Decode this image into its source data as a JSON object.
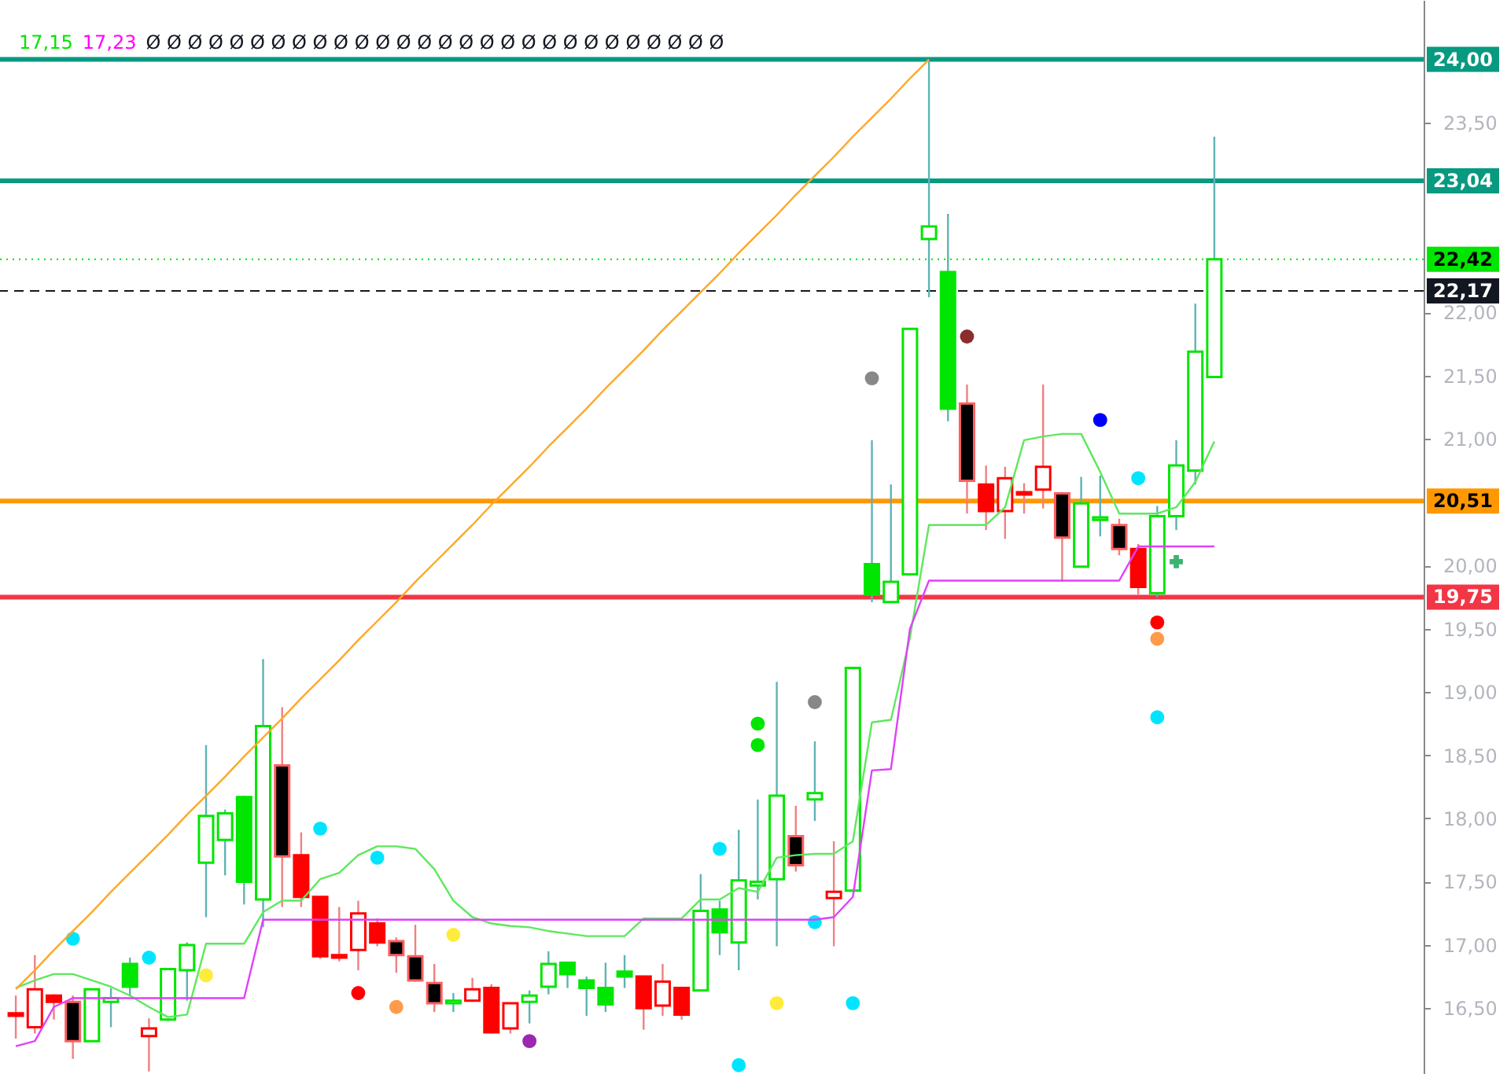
{
  "chart_data": {
    "type": "candlestick",
    "categories": [
      null,
      null,
      null,
      null,
      null,
      null,
      null,
      null,
      null,
      null,
      null,
      null,
      null,
      null,
      null,
      null,
      null,
      null,
      null,
      null,
      null,
      null,
      null,
      null,
      null,
      null,
      null,
      null,
      null,
      null,
      null,
      null,
      null,
      null,
      null,
      null,
      null,
      null,
      null,
      null,
      null,
      null,
      null,
      null,
      null,
      null,
      null,
      null,
      null,
      null,
      null,
      null,
      null,
      null,
      null,
      null,
      null,
      null,
      null,
      null,
      null,
      null,
      null,
      null
    ],
    "ylim": [
      15.98,
      24.47
    ],
    "yticks": [
      {
        "value": 16.5,
        "label": "16,50"
      },
      {
        "value": 17,
        "label": "17,00"
      },
      {
        "value": 17.5,
        "label": "17,50"
      },
      {
        "value": 18,
        "label": "18,00"
      },
      {
        "value": 18.5,
        "label": "18,50"
      },
      {
        "value": 19,
        "label": "19,00"
      },
      {
        "value": 19.5,
        "label": "19,50"
      },
      {
        "value": 20,
        "label": "20,00"
      },
      {
        "value": 21,
        "label": "21,00"
      },
      {
        "value": 21.5,
        "label": "21,50"
      },
      {
        "value": 22,
        "label": "22,00"
      },
      {
        "value": 23.5,
        "label": "23,50"
      }
    ],
    "tick_labels": "y",
    "ohlc": [
      [
        16.46,
        16.6,
        16.26,
        16.44
      ],
      [
        16.65,
        16.92,
        16.3,
        16.35
      ],
      [
        16.6,
        16.61,
        16.41,
        16.55
      ],
      [
        16.55,
        16.6,
        16.1,
        16.24
      ],
      [
        16.24,
        16.65,
        16.24,
        16.65
      ],
      [
        16.55,
        16.66,
        16.35,
        16.58
      ],
      [
        16.67,
        16.9,
        16.6,
        16.85
      ],
      [
        16.34,
        16.42,
        16.0,
        16.28
      ],
      [
        16.41,
        16.81,
        16.4,
        16.81
      ],
      [
        16.8,
        17.02,
        16.56,
        17.0
      ],
      [
        17.65,
        18.58,
        17.22,
        18.02
      ],
      [
        17.83,
        18.07,
        17.55,
        18.04
      ],
      [
        17.5,
        18.18,
        17.32,
        18.17
      ],
      [
        17.36,
        19.26,
        17.14,
        18.73
      ],
      [
        18.42,
        18.88,
        17.3,
        17.7
      ],
      [
        17.71,
        17.89,
        17.3,
        17.38
      ],
      [
        17.38,
        17.38,
        16.89,
        16.91
      ],
      [
        16.92,
        17.3,
        16.87,
        16.9
      ],
      [
        17.25,
        17.35,
        16.8,
        16.96
      ],
      [
        17.17,
        17.21,
        16.99,
        17.02
      ],
      [
        17.03,
        17.06,
        16.78,
        16.92
      ],
      [
        16.91,
        17.16,
        16.71,
        16.72
      ],
      [
        16.7,
        16.85,
        16.47,
        16.54
      ],
      [
        16.54,
        16.62,
        16.47,
        16.56
      ],
      [
        16.65,
        16.74,
        16.55,
        16.56
      ],
      [
        16.66,
        16.69,
        16.3,
        16.31
      ],
      [
        16.54,
        16.54,
        16.3,
        16.34
      ],
      [
        16.55,
        16.64,
        16.38,
        16.6
      ],
      [
        16.67,
        16.95,
        16.61,
        16.85
      ],
      [
        16.77,
        16.86,
        16.66,
        16.86
      ],
      [
        16.66,
        16.75,
        16.44,
        16.72
      ],
      [
        16.53,
        16.86,
        16.47,
        16.66
      ],
      [
        16.75,
        16.92,
        16.66,
        16.79
      ],
      [
        16.75,
        16.75,
        16.33,
        16.5
      ],
      [
        16.71,
        16.85,
        16.44,
        16.52
      ],
      [
        16.66,
        16.67,
        16.41,
        16.45
      ],
      [
        16.64,
        17.56,
        16.64,
        17.27
      ],
      [
        17.1,
        17.35,
        16.92,
        17.28
      ],
      [
        17.02,
        17.91,
        16.8,
        17.51
      ],
      [
        17.47,
        18.15,
        17.36,
        17.5
      ],
      [
        17.52,
        19.08,
        16.99,
        18.18
      ],
      [
        17.86,
        18.1,
        17.58,
        17.63
      ],
      [
        18.15,
        18.61,
        17.98,
        18.2
      ],
      [
        17.42,
        17.82,
        16.99,
        17.37
      ],
      [
        17.43,
        19.19,
        17.43,
        19.19
      ],
      [
        19.77,
        20.99,
        19.71,
        20.01
      ],
      [
        19.71,
        20.64,
        19.71,
        19.87
      ],
      [
        19.93,
        21.87,
        19.93,
        21.87
      ],
      [
        22.58,
        23.99,
        22.12,
        22.68
      ],
      [
        21.24,
        22.78,
        21.14,
        22.32
      ],
      [
        21.28,
        21.43,
        20.41,
        20.67
      ],
      [
        20.64,
        20.79,
        20.28,
        20.43
      ],
      [
        20.69,
        20.78,
        20.21,
        20.43
      ],
      [
        20.58,
        20.65,
        20.41,
        20.56
      ],
      [
        20.78,
        21.43,
        20.45,
        20.6
      ],
      [
        20.57,
        20.58,
        19.87,
        20.22
      ],
      [
        19.99,
        20.7,
        19.99,
        20.49
      ],
      [
        20.36,
        20.71,
        20.23,
        20.38
      ],
      [
        20.32,
        20.37,
        20.08,
        20.13
      ],
      [
        20.13,
        20.17,
        19.77,
        19.83
      ],
      [
        19.78,
        20.47,
        19.75,
        20.39
      ],
      [
        20.39,
        20.99,
        20.28,
        20.79
      ],
      [
        20.75,
        22.07,
        20.64,
        21.69
      ],
      [
        21.49,
        23.39,
        21.49,
        22.42
      ]
    ],
    "colors": [
      "#ff0000",
      "#ffffff",
      "#ff0000",
      "#000000",
      "#ffffff",
      "#ffffff",
      "#00e600",
      "#ffffff",
      "#ffffff",
      "#ffffff",
      "#ffffff",
      "#ffffff",
      "#00e600",
      "#ffffff",
      "#000000",
      "#ff0000",
      "#ff0000",
      "#ff0000",
      "#ffffff",
      "#ff0000",
      "#000000",
      "#000000",
      "#000000",
      "#ffffff",
      "#ffffff",
      "#ff0000",
      "#ffffff",
      "#ffffff",
      "#ffffff",
      "#00e600",
      "#00e600",
      "#00e600",
      "#00e600",
      "#ff0000",
      "#ffffff",
      "#ff0000",
      "#ffffff",
      "#00e600",
      "#ffffff",
      "#ffffff",
      "#ffffff",
      "#000000",
      "#ffffff",
      "#ffffff",
      "#ffffff",
      "#00e600",
      "#ffffff",
      "#ffffff",
      "#ffffff",
      "#00e600",
      "#000000",
      "#ff0000",
      "#ffffff",
      "#ff0000",
      "#ffffff",
      "#000000",
      "#ffffff",
      "#ffffff",
      "#000000",
      "#ff0000",
      "#ffffff",
      "#ffffff",
      "#ffffff",
      "#ffffff"
    ],
    "series": [
      {
        "type": "line",
        "color": "#5ee85e",
        "values": [
          16.66,
          16.72,
          16.77,
          16.77,
          16.72,
          16.67,
          16.6,
          16.51,
          16.43,
          16.45,
          17.01,
          17.01,
          17.01,
          17.26,
          17.35,
          17.35,
          17.52,
          17.57,
          17.71,
          17.78,
          17.78,
          17.76,
          17.6,
          17.35,
          17.22,
          17.17,
          17.15,
          17.14,
          17.11,
          17.09,
          17.07,
          17.07,
          17.07,
          17.21,
          17.21,
          17.21,
          17.36,
          17.36,
          17.45,
          17.42,
          17.69,
          17.71,
          17.72,
          17.72,
          17.82,
          18.76,
          18.78,
          19.43,
          20.32,
          20.32,
          20.32,
          20.32,
          20.46,
          20.99,
          21.02,
          21.04,
          21.04,
          20.74,
          20.41,
          20.41,
          20.41,
          20.46,
          20.66,
          20.98
        ]
      },
      {
        "type": "line",
        "color": "#e040fb",
        "values": [
          16.2,
          16.24,
          16.51,
          16.58,
          16.58,
          16.58,
          16.58,
          16.58,
          16.58,
          16.58,
          16.58,
          16.58,
          16.58,
          17.2,
          17.2,
          17.2,
          17.2,
          17.2,
          17.2,
          17.2,
          17.2,
          17.2,
          17.2,
          17.2,
          17.2,
          17.2,
          17.2,
          17.2,
          17.2,
          17.2,
          17.2,
          17.2,
          17.2,
          17.2,
          17.2,
          17.2,
          17.2,
          17.2,
          17.2,
          17.2,
          17.2,
          17.2,
          17.2,
          17.22,
          17.38,
          18.38,
          18.39,
          19.5,
          19.88,
          19.88,
          19.88,
          19.88,
          19.88,
          19.88,
          19.88,
          19.88,
          19.88,
          19.88,
          19.88,
          20.15,
          20.15,
          20.15,
          20.15,
          20.15
        ]
      },
      {
        "type": "line",
        "color": "#ffa726",
        "values": [
          16.65,
          16.8,
          16.96,
          17.11,
          17.26,
          17.42,
          17.57,
          17.72,
          17.87,
          18.03,
          18.18,
          18.33,
          18.49,
          18.64,
          18.79,
          18.95,
          19.1,
          19.25,
          19.41,
          19.56,
          19.71,
          19.87,
          20.02,
          20.17,
          20.32,
          20.48,
          20.63,
          20.78,
          20.94,
          21.09,
          21.24,
          21.4,
          21.55,
          21.7,
          21.86,
          22.01,
          22.16,
          22.31,
          22.47,
          22.62,
          22.77,
          22.93,
          23.08,
          23.23,
          23.39,
          23.54,
          23.69,
          23.85,
          24.0,
          null,
          null,
          null,
          null,
          null,
          null,
          null,
          null,
          null,
          null,
          null,
          null,
          null,
          null,
          null
        ]
      },
      {
        "type": "scatter",
        "marker": "circle",
        "values": [
          null,
          null,
          null,
          17.05,
          null,
          null,
          null,
          16.9,
          null,
          null,
          16.76,
          null,
          null,
          null,
          null,
          null,
          17.92,
          null,
          16.62,
          17.69,
          16.51,
          null,
          null,
          17.08,
          null,
          null,
          null,
          16.24,
          null,
          null,
          null,
          null,
          null,
          null,
          null,
          null,
          null,
          17.76,
          16.05,
          18.75,
          16.54,
          null,
          18.92,
          null,
          16.54,
          21.48,
          null,
          null,
          null,
          null,
          21.81,
          null,
          null,
          null,
          null,
          null,
          null,
          21.15,
          null,
          20.69,
          19.55,
          null,
          null,
          null
        ],
        "colors": [
          null,
          null,
          null,
          "#00e5ff",
          null,
          null,
          null,
          "#00e5ff",
          null,
          null,
          "#ffeb3b",
          null,
          null,
          null,
          null,
          null,
          "#00e5ff",
          null,
          "#ff0000",
          "#00e5ff",
          "#ff9b4a",
          null,
          null,
          "#ffeb3b",
          null,
          null,
          null,
          "#9c27b0",
          null,
          null,
          null,
          null,
          null,
          null,
          null,
          null,
          null,
          "#00e5ff",
          "#00e5ff",
          "#00e600",
          "#ffeb3b",
          null,
          "#888888",
          null,
          "#00e5ff",
          "#888888",
          null,
          null,
          null,
          null,
          "#8b2d2d",
          null,
          null,
          null,
          null,
          null,
          null,
          "#0000ff",
          null,
          "#00e5ff",
          "#ff0000",
          null,
          null,
          null
        ]
      },
      {
        "type": "scatter",
        "marker": "circle",
        "values": [
          null,
          null,
          null,
          null,
          null,
          null,
          null,
          null,
          null,
          null,
          null,
          null,
          null,
          null,
          null,
          null,
          null,
          null,
          null,
          null,
          null,
          null,
          null,
          null,
          null,
          null,
          null,
          null,
          null,
          null,
          null,
          null,
          null,
          null,
          null,
          null,
          null,
          null,
          null,
          18.58,
          null,
          null,
          17.18,
          null,
          null,
          null,
          null,
          null,
          null,
          null,
          null,
          null,
          null,
          null,
          null,
          null,
          null,
          null,
          null,
          null,
          19.42,
          null,
          null,
          null
        ],
        "colors": [
          null,
          null,
          null,
          null,
          null,
          null,
          null,
          null,
          null,
          null,
          null,
          null,
          null,
          null,
          null,
          null,
          null,
          null,
          null,
          null,
          null,
          null,
          null,
          null,
          null,
          null,
          null,
          null,
          null,
          null,
          null,
          null,
          null,
          null,
          null,
          null,
          null,
          null,
          null,
          "#00e600",
          null,
          null,
          "#00e5ff",
          null,
          null,
          null,
          null,
          null,
          null,
          null,
          null,
          null,
          null,
          null,
          null,
          null,
          null,
          null,
          null,
          null,
          "#ff9b4a",
          null,
          null,
          null
        ]
      },
      {
        "type": "scatter",
        "marker": "circle",
        "color": "#00e5ff",
        "values": [
          null,
          null,
          null,
          null,
          null,
          null,
          null,
          null,
          null,
          null,
          null,
          null,
          null,
          null,
          null,
          null,
          null,
          null,
          null,
          null,
          null,
          null,
          null,
          null,
          null,
          null,
          null,
          null,
          null,
          null,
          null,
          null,
          null,
          null,
          null,
          null,
          null,
          null,
          null,
          null,
          null,
          null,
          null,
          null,
          null,
          null,
          null,
          null,
          null,
          null,
          null,
          null,
          null,
          null,
          null,
          null,
          null,
          null,
          null,
          null,
          18.8,
          null,
          null,
          null
        ]
      },
      {
        "type": "scatter",
        "marker": "cross",
        "color": "#3cb371",
        "values": [
          null,
          null,
          null,
          null,
          null,
          null,
          null,
          null,
          null,
          null,
          null,
          null,
          null,
          null,
          null,
          null,
          null,
          null,
          null,
          null,
          null,
          null,
          null,
          null,
          null,
          null,
          null,
          null,
          null,
          null,
          null,
          null,
          null,
          null,
          null,
          null,
          null,
          null,
          null,
          null,
          null,
          null,
          null,
          null,
          null,
          null,
          null,
          null,
          null,
          null,
          null,
          null,
          null,
          null,
          null,
          null,
          null,
          null,
          null,
          null,
          null,
          20.03,
          null,
          null
        ]
      }
    ],
    "ref_lines": [
      {
        "axis": "y",
        "value": 24.0,
        "label": "24,00",
        "color": "#089981",
        "line_style": "solid"
      },
      {
        "axis": "y",
        "value": 23.04,
        "label": "23,04",
        "color": "#089981",
        "line_style": "solid"
      },
      {
        "axis": "y",
        "value": 22.42,
        "label": "22,42",
        "color": "#00e600",
        "line_style": "dotted"
      },
      {
        "axis": "y",
        "value": 22.17,
        "label": "22,17",
        "color": "#131722",
        "line_style": "dashed"
      },
      {
        "axis": "y",
        "value": 20.51,
        "label": "20,51",
        "color": "#ff9800",
        "line_style": "solid"
      },
      {
        "axis": "y",
        "value": 19.75,
        "label": "19,75",
        "color": "#f23645",
        "line_style": "solid"
      }
    ],
    "annotations": [
      "17,15",
      "17,23",
      "Ø Ø Ø Ø Ø Ø Ø Ø Ø Ø Ø Ø Ø Ø Ø Ø Ø Ø Ø Ø Ø Ø Ø Ø Ø Ø Ø Ø"
    ]
  }
}
